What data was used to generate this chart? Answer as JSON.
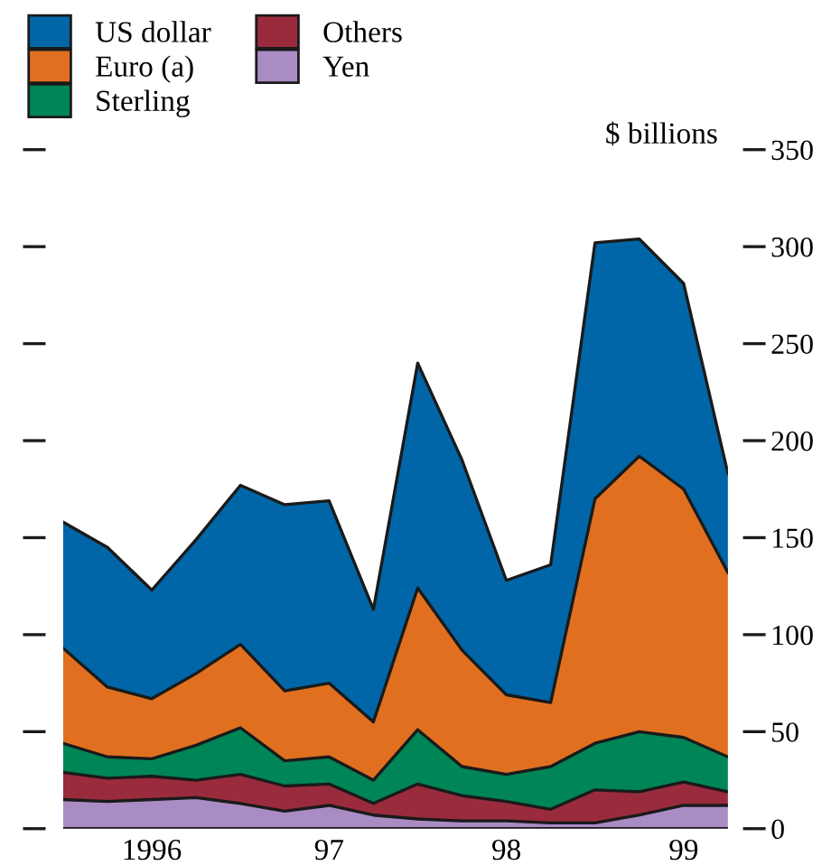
{
  "chart_data": {
    "type": "area",
    "stacked": true,
    "ylabel": "$ billions",
    "x": [
      1995.5,
      1995.75,
      1996.0,
      1996.25,
      1996.5,
      1996.75,
      1997.0,
      1997.25,
      1997.5,
      1997.75,
      1998.0,
      1998.25,
      1998.5,
      1998.75,
      1999.0,
      1999.25
    ],
    "xlim": [
      1995.5,
      1999.25
    ],
    "xticks": [
      {
        "value": 1996.0,
        "label": "1996"
      },
      {
        "value": 1997.0,
        "label": "97"
      },
      {
        "value": 1998.0,
        "label": "98"
      },
      {
        "value": 1999.0,
        "label": "99"
      }
    ],
    "ylim": [
      0,
      350
    ],
    "yticks": [
      0,
      50,
      100,
      150,
      200,
      250,
      300,
      350
    ],
    "grid": false,
    "legend": "top left",
    "series": [
      {
        "name": "Yen",
        "color": "#a98cc4",
        "values": [
          15,
          14,
          15,
          16,
          13,
          9,
          12,
          7,
          5,
          4,
          4,
          3,
          3,
          7,
          12,
          12
        ]
      },
      {
        "name": "Others",
        "color": "#9a2b3d",
        "values": [
          14,
          12,
          12,
          9,
          15,
          13,
          11,
          6,
          18,
          13,
          10,
          7,
          17,
          12,
          12,
          7
        ]
      },
      {
        "name": "Sterling",
        "color": "#008556",
        "values": [
          15,
          11,
          9,
          18,
          24,
          13,
          14,
          12,
          28,
          15,
          14,
          22,
          24,
          31,
          23,
          18
        ]
      },
      {
        "name": "Euro (a)",
        "color": "#e07020",
        "values": [
          49,
          36,
          31,
          37,
          43,
          36,
          38,
          30,
          73,
          60,
          41,
          33,
          126,
          142,
          128,
          95
        ]
      },
      {
        "name": "US dollar",
        "color": "#0066a8",
        "values": [
          65,
          72,
          56,
          69,
          82,
          96,
          94,
          58,
          116,
          98,
          59,
          71,
          132,
          112,
          106,
          51
        ]
      }
    ]
  }
}
